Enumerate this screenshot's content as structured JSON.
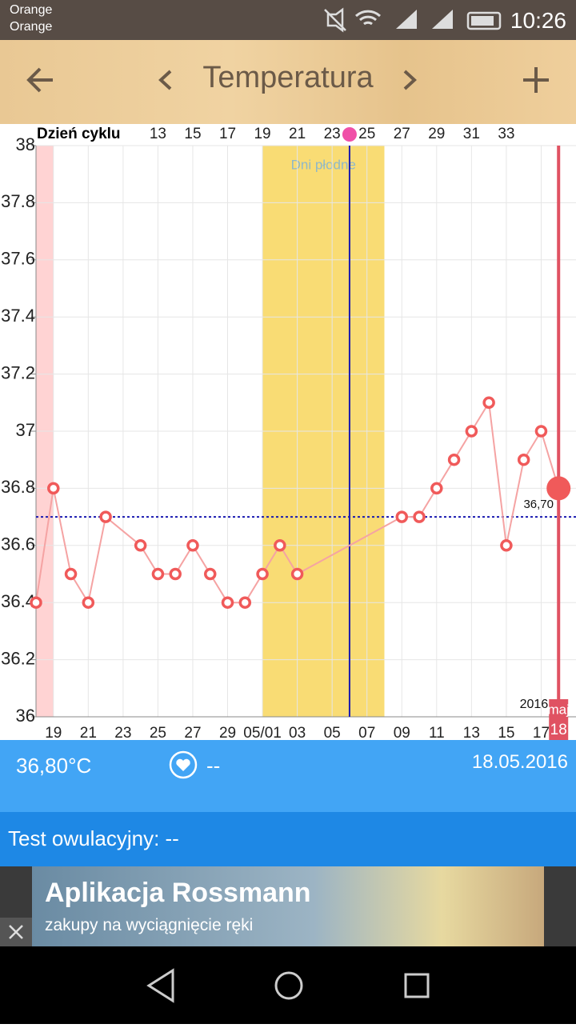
{
  "status_bar": {
    "carrier": [
      "Orange",
      "Orange"
    ],
    "time": "10:26"
  },
  "header": {
    "title": "Temperatura"
  },
  "chart_data": {
    "type": "line",
    "x_label_top": "Dzień cyklu",
    "x": [
      0,
      1,
      2,
      3,
      4,
      6,
      7,
      8,
      9,
      10,
      11,
      12,
      13,
      14,
      15,
      21,
      22,
      23,
      24,
      25,
      26,
      27,
      28,
      29,
      30
    ],
    "series": [
      {
        "color": "#f5a3a3",
        "marker_color": "#f05a5a",
        "values": [
          36.4,
          36.8,
          36.5,
          36.4,
          36.7,
          36.6,
          36.5,
          36.5,
          36.6,
          36.5,
          36.4,
          36.4,
          36.5,
          36.6,
          36.5,
          36.7,
          36.7,
          36.8,
          36.9,
          37.0,
          37.1,
          36.6,
          36.9,
          37.0,
          36.8
        ]
      }
    ],
    "xlim": [
      0,
      31
    ],
    "xticks": [
      {
        "value": 1,
        "label": "19"
      },
      {
        "value": 3,
        "label": "21"
      },
      {
        "value": 5,
        "label": "23"
      },
      {
        "value": 7,
        "label": "25"
      },
      {
        "value": 9,
        "label": "27"
      },
      {
        "value": 11,
        "label": "29"
      },
      {
        "value": 13,
        "label": "05/01"
      },
      {
        "value": 15,
        "label": "03"
      },
      {
        "value": 17,
        "label": "05"
      },
      {
        "value": 19,
        "label": "07"
      },
      {
        "value": 21,
        "label": "09"
      },
      {
        "value": 23,
        "label": "11"
      },
      {
        "value": 25,
        "label": "13"
      },
      {
        "value": 27,
        "label": "15"
      },
      {
        "value": 29,
        "label": "17"
      }
    ],
    "x2lim": [
      6,
      37
    ],
    "x2ticks": [
      13,
      15,
      17,
      19,
      21,
      23,
      25,
      27,
      29,
      31,
      33
    ],
    "ylim": [
      36,
      38
    ],
    "yticks": [
      36,
      36.2,
      36.4,
      36.6,
      36.8,
      37,
      37.2,
      37.4,
      37.6,
      37.8,
      38
    ],
    "grid": true,
    "period": {
      "range": [
        0,
        1
      ],
      "color": "#ffd3d3"
    },
    "fertile": {
      "label": "Dni płodne",
      "range": [
        13,
        20
      ],
      "color": "#f9dc74"
    },
    "ovulation_x": 18,
    "cover_line": {
      "value": 36.7,
      "label": "36,70"
    },
    "today": {
      "x": 30,
      "year": "2016",
      "month": "maj",
      "day": "18",
      "color": "#e05262"
    }
  },
  "summary": {
    "temperature": "36,80°C",
    "mood": "--",
    "date": "18.05.2016",
    "test": "Test owulacyjny: --"
  },
  "ad": {
    "title": "Aplikacja Rossmann",
    "subtitle": "zakupy na wyciągnięcie ręki"
  }
}
